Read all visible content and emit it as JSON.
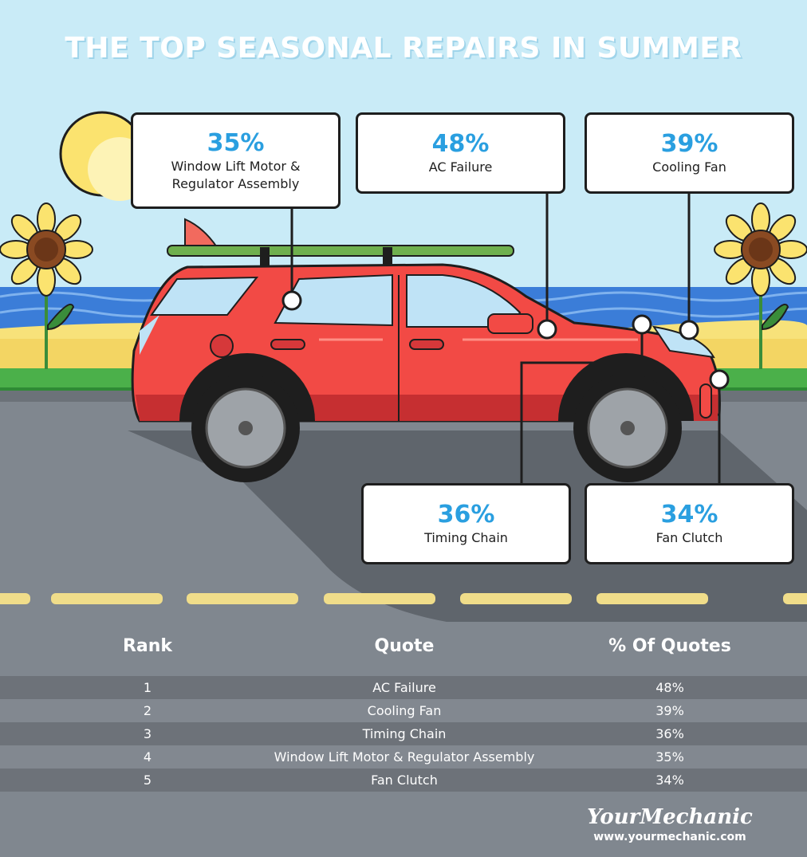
{
  "title": "THE TOP SEASONAL REPAIRS IN SUMMER",
  "callouts": [
    {
      "pct": "35%",
      "label": [
        "Window Lift Motor &",
        "Regulator Assembly"
      ]
    },
    {
      "pct": "48%",
      "label": [
        "AC Failure"
      ]
    },
    {
      "pct": "39%",
      "label": [
        "Cooling Fan"
      ]
    },
    {
      "pct": "36%",
      "label": [
        "Timing Chain"
      ]
    },
    {
      "pct": "34%",
      "label": [
        "Fan Clutch"
      ]
    }
  ],
  "table": {
    "headers": {
      "rank": "Rank",
      "quote": "Quote",
      "pct": "% Of Quotes"
    },
    "rows": [
      {
        "rank": "1",
        "quote": "AC Failure",
        "pct": "48%"
      },
      {
        "rank": "2",
        "quote": "Cooling Fan",
        "pct": "39%"
      },
      {
        "rank": "3",
        "quote": "Timing Chain",
        "pct": "36%"
      },
      {
        "rank": "4",
        "quote": "Window Lift Motor & Regulator Assembly",
        "pct": "35%"
      },
      {
        "rank": "5",
        "quote": "Fan Clutch",
        "pct": "34%"
      }
    ]
  },
  "brand": {
    "name": "YourMechanic",
    "url": "www.yourmechanic.com"
  },
  "colors": {
    "sky": "#c9ebf7",
    "percent_text": "#2a9fe0",
    "car_body": "#f24a45",
    "road": "#80878f",
    "table_row_dark": "#6d7279",
    "table_row_light": "#828890",
    "lane_marking": "#f0dd8a"
  },
  "chart_data": {
    "type": "table",
    "title": "THE TOP SEASONAL REPAIRS IN SUMMER",
    "columns": [
      "Rank",
      "Quote",
      "% Of Quotes"
    ],
    "categories": [
      "AC Failure",
      "Cooling Fan",
      "Timing Chain",
      "Window Lift Motor & Regulator Assembly",
      "Fan Clutch"
    ],
    "values": [
      48,
      39,
      36,
      35,
      34
    ],
    "ranks": [
      1,
      2,
      3,
      4,
      5
    ],
    "unit": "%"
  }
}
